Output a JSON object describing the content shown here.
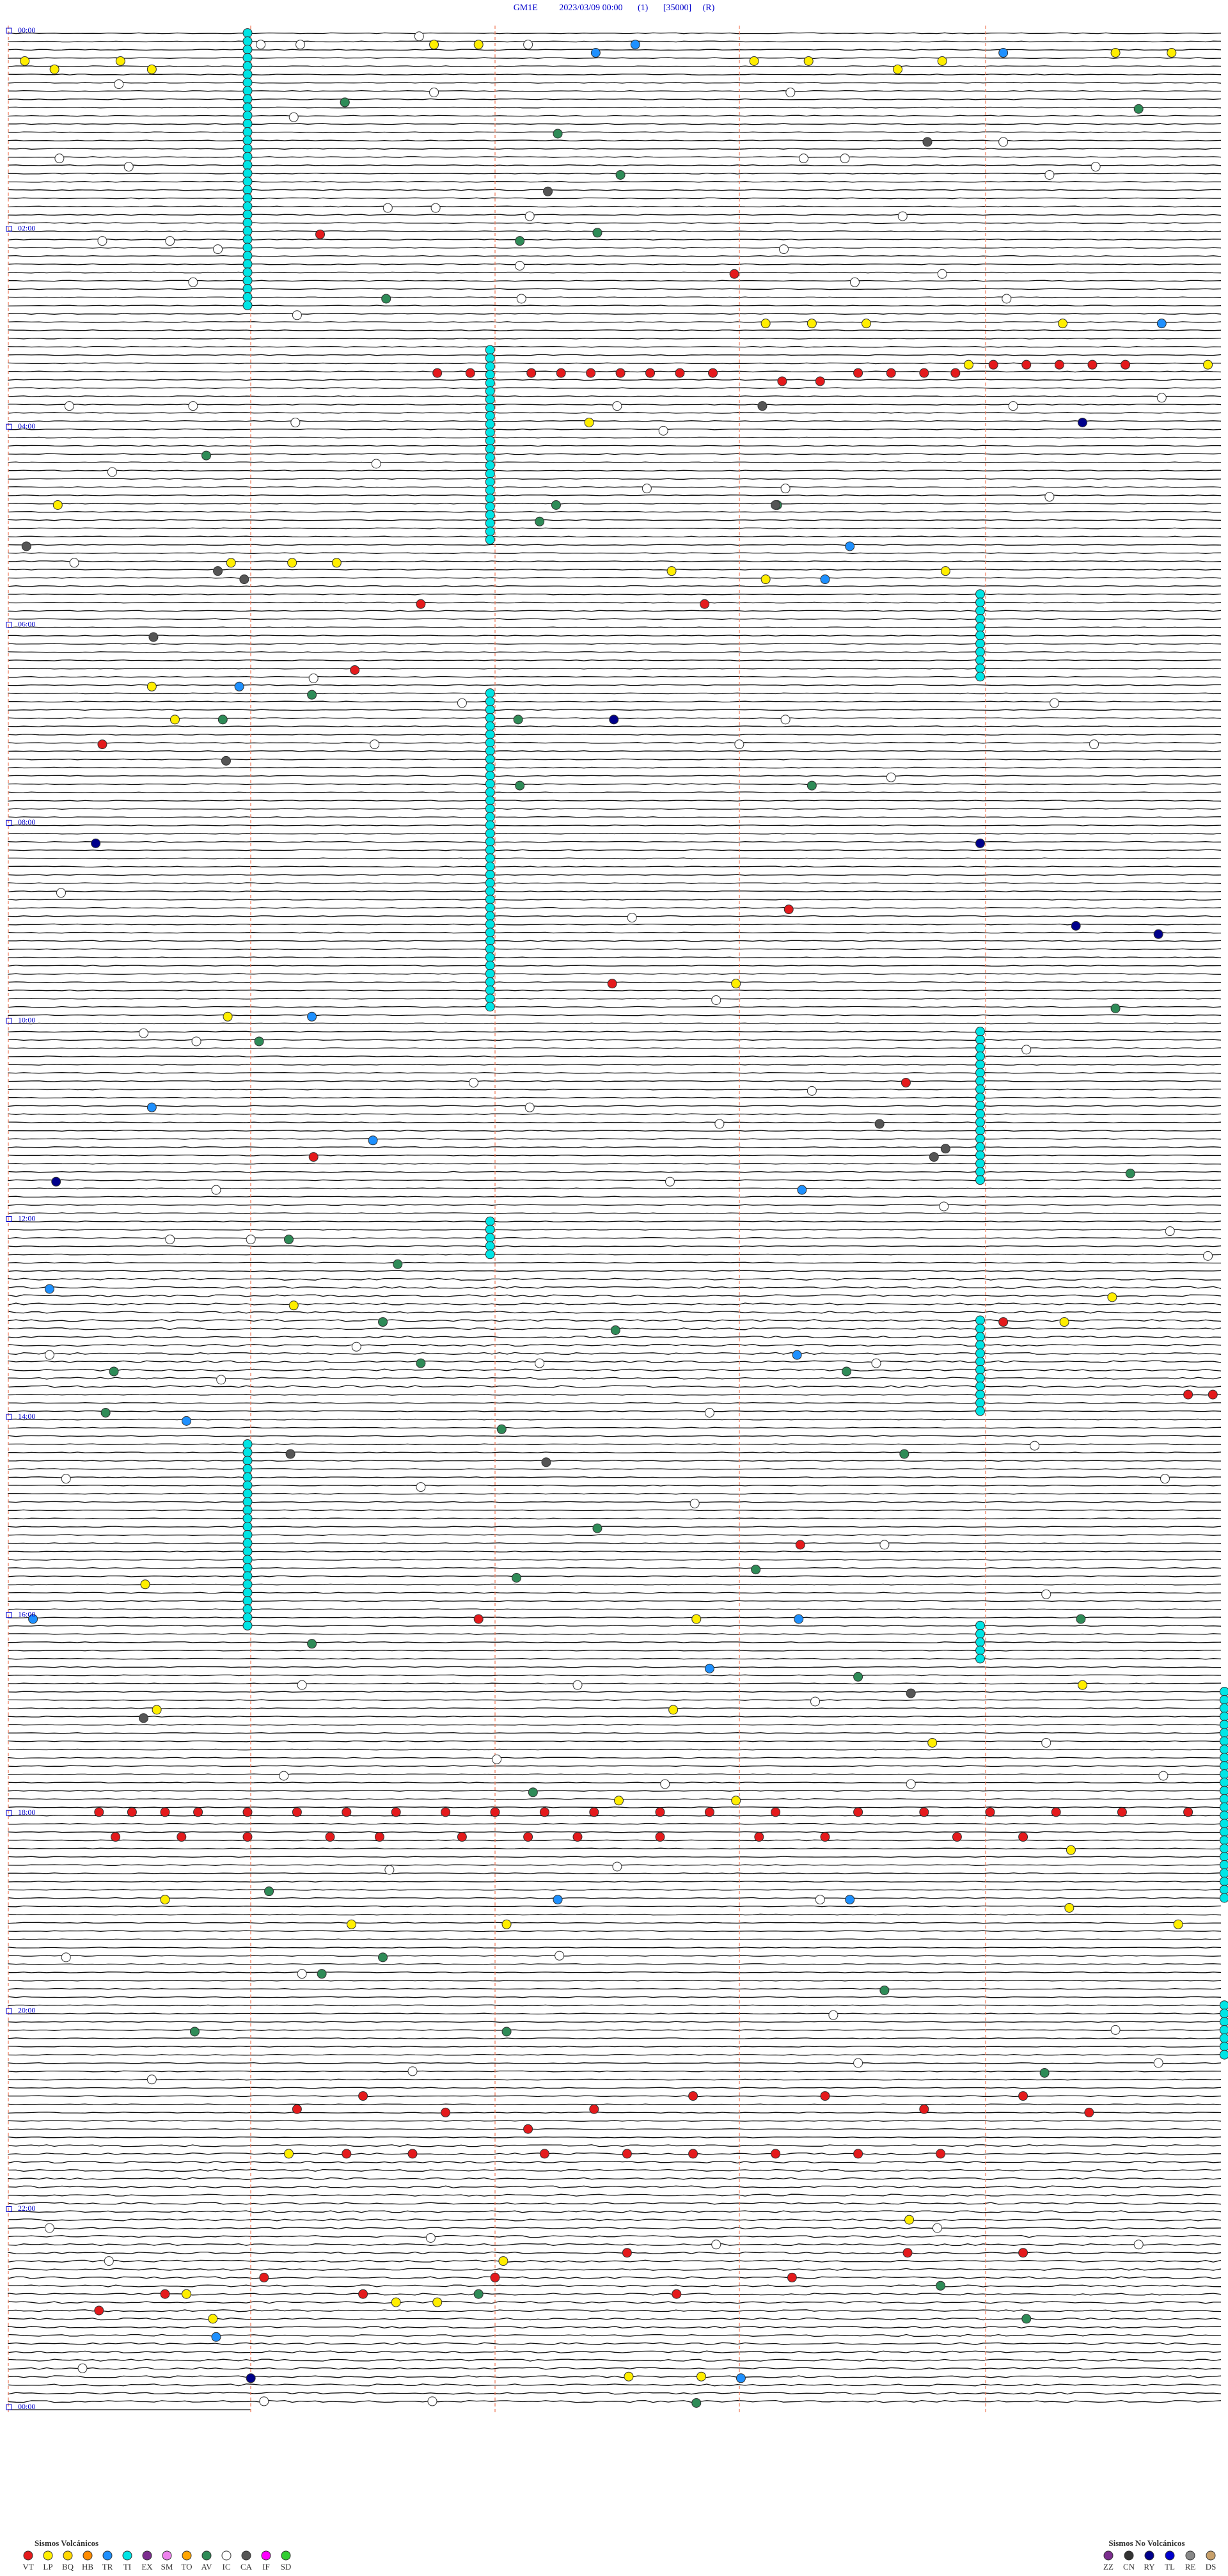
{
  "header": {
    "station": "GM1E",
    "datetime": "2023/03/09 00:00",
    "channel": "(1)",
    "scale": "[35000]",
    "mode": "(R)"
  },
  "time_labels": [
    "00:00",
    "02:00",
    "04:00",
    "06:00",
    "08:00",
    "10:00",
    "12:00",
    "14:00",
    "16:00",
    "18:00",
    "20:00",
    "22:00",
    "00:00"
  ],
  "legend_volcanic": {
    "title": "Sismos Volcánicos",
    "items": [
      {
        "code": "VT",
        "color": "#e41a1c"
      },
      {
        "code": "LP",
        "color": "#ffee00"
      },
      {
        "code": "BQ",
        "color": "#ffd700"
      },
      {
        "code": "HB",
        "color": "#ff8c00"
      },
      {
        "code": "TR",
        "color": "#1e90ff"
      },
      {
        "code": "TI",
        "color": "#00e5e5"
      },
      {
        "code": "EX",
        "color": "#7b2d8e"
      },
      {
        "code": "SM",
        "color": "#ee82ee"
      },
      {
        "code": "TO",
        "color": "#ffa500"
      },
      {
        "code": "AV",
        "color": "#2e8b57"
      },
      {
        "code": "IC",
        "color": "#ffffff"
      },
      {
        "code": "CA",
        "color": "#555555"
      },
      {
        "code": "IF",
        "color": "#ff00ff"
      },
      {
        "code": "SD",
        "color": "#32cd32"
      }
    ]
  },
  "legend_non_volcanic": {
    "title": "Sismos No Volcánicos",
    "items": [
      {
        "code": "ZZ",
        "color": "#7b2d8e"
      },
      {
        "code": "CN",
        "color": "#333333"
      },
      {
        "code": "RY",
        "color": "#00008b"
      },
      {
        "code": "TL",
        "color": "#0000cd"
      },
      {
        "code": "RE",
        "color": "#888888"
      },
      {
        "code": "DS",
        "color": "#c8a06a"
      }
    ]
  }
}
